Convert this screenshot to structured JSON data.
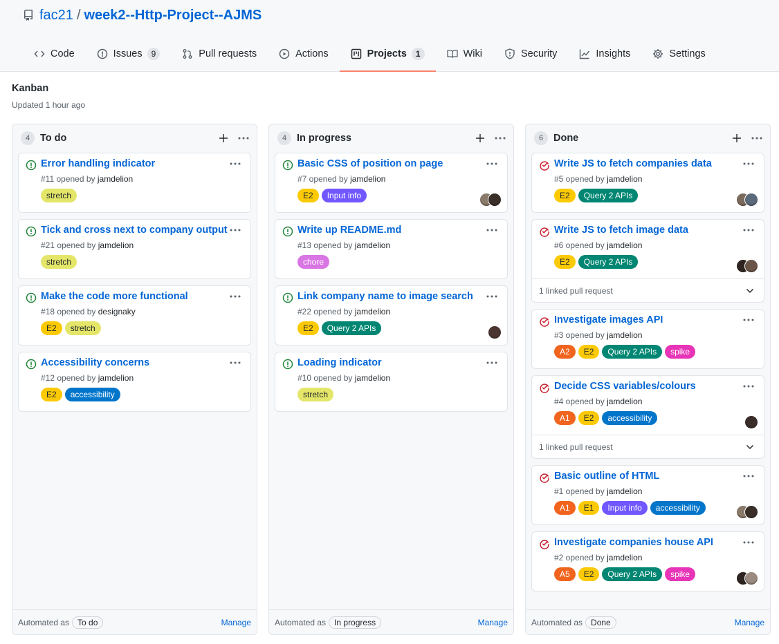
{
  "repo": {
    "owner": "fac21",
    "separator": "/",
    "name": "week2--Http-Project--AJMS"
  },
  "tabs": [
    {
      "label": "Code",
      "icon": "code-icon"
    },
    {
      "label": "Issues",
      "icon": "issue-opened-icon",
      "count": "9"
    },
    {
      "label": "Pull requests",
      "icon": "git-pull-request-icon"
    },
    {
      "label": "Actions",
      "icon": "play-icon"
    },
    {
      "label": "Projects",
      "icon": "project-icon",
      "count": "1",
      "active": true
    },
    {
      "label": "Wiki",
      "icon": "book-icon"
    },
    {
      "label": "Security",
      "icon": "shield-icon"
    },
    {
      "label": "Insights",
      "icon": "graph-icon"
    },
    {
      "label": "Settings",
      "icon": "gear-icon"
    }
  ],
  "project": {
    "title": "Kanban",
    "updated": "Updated 1 hour ago"
  },
  "footer": {
    "automated": "Automated as",
    "manage": "Manage"
  },
  "label_colors": {
    "stretch": "#e4e669",
    "E2": "#fbca04",
    "E1": "#fbca04",
    "A1": "#f1641e",
    "A2": "#f1641e",
    "A5": "#f1641e",
    "Input info": "#7057ff",
    "Query 2 APIs": "#008672",
    "chore": "#d876e3",
    "accessibility": "#0075ca",
    "spike": "#e834b7"
  },
  "columns": [
    {
      "count": "4",
      "name": "To do",
      "automation": "To do",
      "cards": [
        {
          "title": "Error handling indicator",
          "meta": "#11 opened by",
          "user": "jamdelion",
          "labels": [
            "stretch"
          ],
          "status": "open"
        },
        {
          "title": "Tick and cross next to company output",
          "meta": "#21 opened by",
          "user": "jamdelion",
          "labels": [
            "stretch"
          ],
          "status": "open"
        },
        {
          "title": "Make the code more functional",
          "meta": "#18 opened by",
          "user": "designaky",
          "labels": [
            "E2",
            "stretch"
          ],
          "status": "open"
        },
        {
          "title": "Accessibility concerns",
          "meta": "#12 opened by",
          "user": "jamdelion",
          "labels": [
            "E2",
            "accessibility"
          ],
          "status": "open"
        }
      ]
    },
    {
      "count": "4",
      "name": "In progress",
      "automation": "In progress",
      "cards": [
        {
          "title": "Basic CSS of position on page",
          "meta": "#7 opened by",
          "user": "jamdelion",
          "labels": [
            "E2",
            "Input info"
          ],
          "status": "open",
          "avatars": [
            "#8a7a6a",
            "#3a2e28"
          ]
        },
        {
          "title": "Write up README.md",
          "meta": "#13 opened by",
          "user": "jamdelion",
          "labels": [
            "chore"
          ],
          "status": "open"
        },
        {
          "title": "Link company name to image search",
          "meta": "#22 opened by",
          "user": "jamdelion",
          "labels": [
            "E2",
            "Query 2 APIs"
          ],
          "status": "open",
          "avatars": [
            "#4a3530"
          ]
        },
        {
          "title": "Loading indicator",
          "meta": "#10 opened by",
          "user": "jamdelion",
          "labels": [
            "stretch"
          ],
          "status": "open"
        }
      ]
    },
    {
      "count": "6",
      "name": "Done",
      "automation": "Done",
      "cards": [
        {
          "title": "Write JS to fetch companies data",
          "meta": "#5 opened by",
          "user": "jamdelion",
          "labels": [
            "E2",
            "Query 2 APIs"
          ],
          "status": "closed",
          "avatars": [
            "#7a6a5c",
            "#5a6a7a"
          ]
        },
        {
          "title": "Write JS to fetch image data",
          "meta": "#6 opened by",
          "user": "jamdelion",
          "labels": [
            "E2",
            "Query 2 APIs"
          ],
          "status": "closed",
          "avatars": [
            "#2e2420",
            "#6a5448"
          ],
          "linked": "1 linked pull request"
        },
        {
          "title": "Investigate images API",
          "meta": "#3 opened by",
          "user": "jamdelion",
          "labels": [
            "A2",
            "E2",
            "Query 2 APIs",
            "spike"
          ],
          "status": "closed"
        },
        {
          "title": "Decide CSS variables/colours",
          "meta": "#4 opened by",
          "user": "jamdelion",
          "labels": [
            "A1",
            "E2",
            "accessibility"
          ],
          "status": "closed",
          "avatars": [
            "#3a2c28"
          ],
          "linked": "1 linked pull request"
        },
        {
          "title": "Basic outline of HTML",
          "meta": "#1 opened by",
          "user": "jamdelion",
          "labels": [
            "A1",
            "E1",
            "Input info",
            "accessibility"
          ],
          "status": "closed",
          "avatars": [
            "#8a7a6a",
            "#3a2e28"
          ]
        },
        {
          "title": "Investigate companies house API",
          "meta": "#2 opened by",
          "user": "jamdelion",
          "labels": [
            "A5",
            "E2",
            "Query 2 APIs",
            "spike"
          ],
          "status": "closed",
          "avatars": [
            "#2e2420",
            "#9a8a80"
          ]
        }
      ]
    }
  ]
}
